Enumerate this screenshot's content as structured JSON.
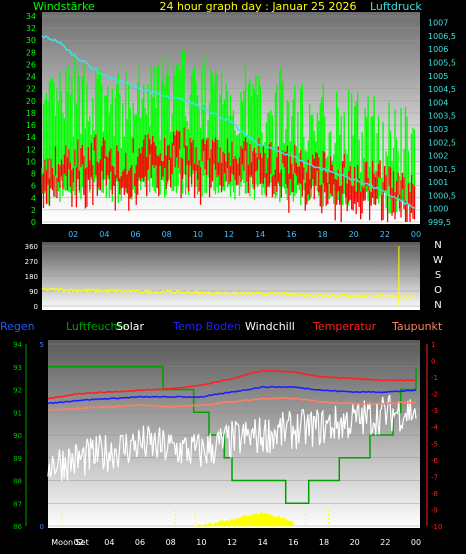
{
  "header": {
    "left_label": "Windstärke",
    "title": "24 hour graph day : Januar 25 2026",
    "right_label": "Luftdruck"
  },
  "legend": {
    "regen": "Regen",
    "luftfeuchte": "Luftfeuchte",
    "solar": "Solar",
    "temp_boden": "Temp Boden",
    "windchill": "Windchill",
    "temperatur": "Temperatur",
    "taupunkt": "Taupunkt"
  },
  "colors": {
    "wind_gust": "#00ff00",
    "wind_avg": "#ff0000",
    "pressure": "#40e0e0",
    "direction": "#ffff00",
    "luftfeuchte": "#00a000",
    "temp_boden": "#2020ff",
    "windchill": "#ffffff",
    "temperatur": "#ff2020",
    "taupunkt": "#ff8060",
    "solar": "#ffff00",
    "regen": "#1e5cff"
  },
  "chart_data": [
    {
      "type": "line",
      "name": "wind-pressure",
      "x_ticks": [
        "02",
        "04",
        "06",
        "08",
        "10",
        "12",
        "14",
        "16",
        "18",
        "20",
        "22",
        "00"
      ],
      "left_axis": {
        "label": "Windstärke",
        "ticks": [
          0,
          2,
          4,
          6,
          8,
          10,
          12,
          14,
          16,
          18,
          20,
          22,
          24,
          26,
          28,
          30,
          32,
          34
        ],
        "ylim": [
          0,
          34
        ]
      },
      "right_axis": {
        "label": "Luftdruck",
        "ticks": [
          "999,5",
          "1000",
          "1000,5",
          "1001",
          "1001,5",
          "1002",
          "1002,5",
          "1003",
          "1003,5",
          "1004",
          "1004,5",
          "1005",
          "1005,5",
          "1006",
          "1006,5",
          "1007"
        ],
        "ylim": [
          999.5,
          1007.25
        ]
      },
      "x_hours": [
        0,
        1,
        2,
        3,
        4,
        5,
        6,
        7,
        8,
        9,
        10,
        11,
        12,
        13,
        14,
        15,
        16,
        17,
        18,
        19,
        20,
        21,
        22,
        23,
        24
      ],
      "series": [
        {
          "key": "gust",
          "values": [
            16,
            19,
            20,
            21,
            19,
            18,
            19,
            20,
            21,
            22,
            21,
            20,
            20,
            20,
            19,
            19,
            18,
            17,
            17,
            16,
            15,
            15,
            14,
            13,
            12
          ]
        },
        {
          "key": "avg",
          "values": [
            9,
            10,
            11,
            12,
            11,
            10,
            11,
            12,
            12,
            13,
            12,
            12,
            11,
            11,
            11,
            10,
            10,
            9,
            9,
            9,
            8,
            8,
            7,
            6,
            5
          ]
        },
        {
          "key": "pressure",
          "values": [
            1006.5,
            1006.3,
            1005.8,
            1005.4,
            1005.0,
            1004.8,
            1004.6,
            1004.4,
            1004.2,
            1004.1,
            1003.9,
            1003.6,
            1003.3,
            1002.8,
            1002.4,
            1002.2,
            1002.0,
            1001.7,
            1001.5,
            1001.3,
            1001.1,
            1000.9,
            1000.6,
            1000.3,
            1000.0
          ]
        }
      ]
    },
    {
      "type": "line",
      "name": "wind-direction",
      "left_axis": {
        "ticks": [
          0,
          90,
          180,
          270,
          360
        ],
        "ylim": [
          0,
          360
        ]
      },
      "right_labels": [
        "N",
        "W",
        "S",
        "O",
        "N"
      ],
      "x_hours": [
        0,
        2,
        4,
        6,
        8,
        10,
        12,
        14,
        16,
        18,
        20,
        22,
        24
      ],
      "series": [
        {
          "key": "direction",
          "values": [
            100,
            95,
            90,
            88,
            85,
            80,
            78,
            75,
            70,
            65,
            62,
            58,
            55
          ]
        }
      ]
    },
    {
      "type": "line",
      "name": "temperature-humidity",
      "x_ticks": [
        "Moon Set",
        "02",
        "04",
        "06",
        "08",
        "10",
        "12",
        "14",
        "16",
        "18",
        "20",
        "22",
        "00"
      ],
      "left_axis": {
        "ticks": [
          86,
          87,
          88,
          89,
          90,
          91,
          92,
          93,
          94
        ],
        "ylim": [
          86,
          94
        ]
      },
      "rain_axis": {
        "ticks": [
          0,
          5
        ],
        "ylim": [
          0,
          5
        ]
      },
      "right_axis": {
        "ticks": [
          1,
          0,
          -1,
          -2,
          -3,
          -4,
          -5,
          -6,
          -7,
          -8,
          -9,
          -10
        ],
        "ylim": [
          -10,
          1
        ]
      },
      "x_hours": [
        0,
        2,
        4,
        6,
        8,
        10,
        12,
        14,
        16,
        18,
        20,
        22,
        24
      ],
      "series": [
        {
          "key": "luftfeuchte",
          "values": [
            93,
            93,
            93,
            93,
            92,
            91,
            88,
            88,
            87,
            88,
            89,
            90,
            93
          ]
        },
        {
          "key": "temperatur",
          "values": [
            -2.3,
            -2.0,
            -1.9,
            -1.8,
            -1.7,
            -1.5,
            -1.1,
            -0.6,
            -0.7,
            -1.0,
            -1.1,
            -1.2,
            -1.2
          ]
        },
        {
          "key": "temp_boden",
          "values": [
            -2.6,
            -2.4,
            -2.3,
            -2.2,
            -2.2,
            -2.2,
            -1.9,
            -1.6,
            -1.6,
            -1.8,
            -1.9,
            -1.9,
            -1.8
          ]
        },
        {
          "key": "taupunkt",
          "values": [
            -3.0,
            -2.9,
            -2.8,
            -2.7,
            -2.8,
            -2.7,
            -2.5,
            -2.3,
            -2.3,
            -2.5,
            -2.6,
            -2.6,
            -2.5
          ]
        },
        {
          "key": "windchill",
          "values": [
            -6.2,
            -6.0,
            -5.5,
            -5.0,
            -5.3,
            -5.5,
            -4.8,
            -4.5,
            -4.2,
            -4.0,
            -3.6,
            -3.2,
            -3.0
          ]
        },
        {
          "key": "solar",
          "values": [
            0,
            0,
            0,
            0,
            0,
            0,
            0.3,
            0.6,
            0.2,
            0,
            0,
            0,
            0
          ]
        }
      ]
    }
  ]
}
